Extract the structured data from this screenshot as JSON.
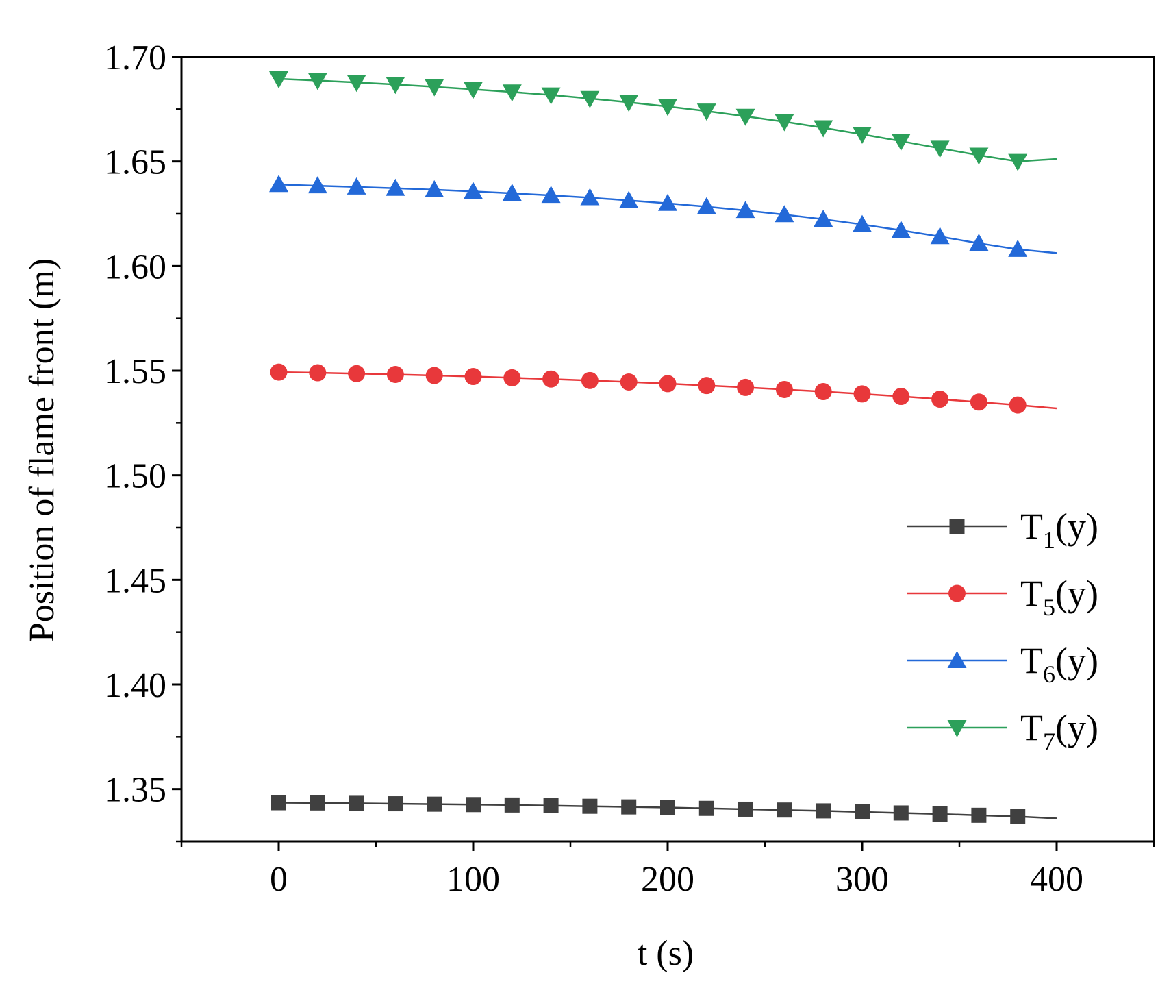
{
  "chart_data": {
    "type": "line",
    "title": "",
    "xlabel": "t (s)",
    "ylabel": "Position of flame front (m)",
    "xlim": [
      -50,
      450
    ],
    "ylim": [
      1.325,
      1.7
    ],
    "xticks": [
      0,
      100,
      200,
      300,
      400
    ],
    "xtick_labels": [
      "0",
      "100",
      "200",
      "300",
      "400"
    ],
    "yticks": [
      1.35,
      1.4,
      1.45,
      1.5,
      1.55,
      1.6,
      1.65,
      1.7
    ],
    "ytick_labels": [
      "1.35",
      "1.40",
      "1.45",
      "1.50",
      "1.55",
      "1.60",
      "1.65",
      "1.70"
    ],
    "legend_position": "lower-right",
    "x": [
      0,
      20,
      40,
      60,
      80,
      100,
      120,
      140,
      160,
      180,
      200,
      220,
      240,
      260,
      280,
      300,
      320,
      340,
      360,
      380
    ],
    "line_end_x": 400,
    "series": [
      {
        "name": "T1(y)",
        "label_main": "T",
        "label_sub": "1",
        "label_tail": "(y)",
        "color": "#404040",
        "marker": "square",
        "values": [
          1.3435,
          1.3434,
          1.3432,
          1.343,
          1.3428,
          1.3426,
          1.3424,
          1.3421,
          1.3418,
          1.3415,
          1.3412,
          1.3408,
          1.3404,
          1.34,
          1.3396,
          1.3391,
          1.3386,
          1.3381,
          1.3375,
          1.3369
        ],
        "line_end": 1.336
      },
      {
        "name": "T5(y)",
        "label_main": "T",
        "label_sub": "5",
        "label_tail": "(y)",
        "color": "#e8383b",
        "marker": "circle",
        "values": [
          1.5493,
          1.549,
          1.5486,
          1.5482,
          1.5477,
          1.5472,
          1.5466,
          1.546,
          1.5453,
          1.5446,
          1.5438,
          1.5429,
          1.542,
          1.541,
          1.54,
          1.5389,
          1.5377,
          1.5364,
          1.535,
          1.5336
        ],
        "line_end": 1.532
      },
      {
        "name": "T6(y)",
        "label_main": "T",
        "label_sub": "6",
        "label_tail": "(y)",
        "color": "#2369d8",
        "marker": "triangle-up",
        "values": [
          1.639,
          1.6384,
          1.6378,
          1.6372,
          1.6365,
          1.6357,
          1.6348,
          1.6338,
          1.6327,
          1.6314,
          1.63,
          1.6284,
          1.6266,
          1.6246,
          1.6224,
          1.6199,
          1.6171,
          1.6141,
          1.6109,
          1.608
        ],
        "line_end": 1.6062
      },
      {
        "name": "T7(y)",
        "label_main": "T",
        "label_sub": "7",
        "label_tail": "(y)",
        "color": "#2ca05a",
        "marker": "triangle-down",
        "values": [
          1.6895,
          1.6887,
          1.6878,
          1.6868,
          1.6857,
          1.6845,
          1.6832,
          1.6818,
          1.6801,
          1.6783,
          1.6763,
          1.6741,
          1.6716,
          1.669,
          1.6661,
          1.663,
          1.6597,
          1.6563,
          1.653,
          1.65
        ],
        "line_end": 1.6512
      }
    ]
  }
}
